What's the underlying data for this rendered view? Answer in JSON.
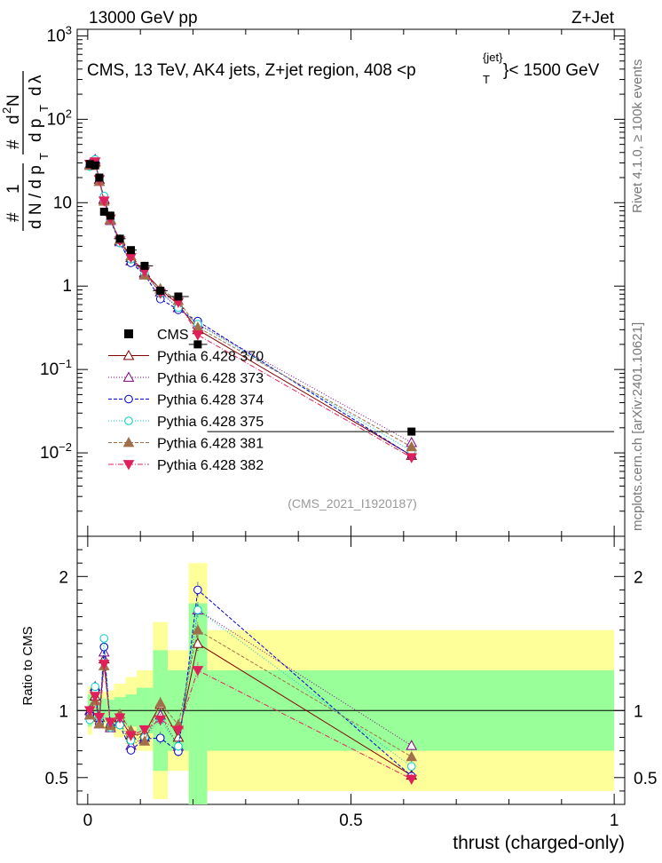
{
  "header": {
    "left": "13000 GeV pp",
    "right": "Z+Jet"
  },
  "side_labels": {
    "rivet": "Rivet 4.1.0, ≥ 100k events",
    "mcplots": "mcplots.cern.ch [arXiv:2401.10621]"
  },
  "chart_data": {
    "type": "scatter",
    "title": "CMS, 13 TeV, AK4 jets, Z+jet region, 408 <p_T^{jet}< 1500 GeV",
    "analysis_tag": "(CMS_2021_I1920187)",
    "xlabel": "thrust (charged-only)",
    "ylabel_main": "1/(dN/dp_T) d²N/(dp_T dλ)",
    "ylabel_ratio": "Ratio to CMS",
    "xlim": [
      -0.02,
      1.02
    ],
    "ylim_main": [
      0.001,
      1200
    ],
    "yscale_main": "log",
    "ylim_ratio": [
      0.3,
      2.3
    ],
    "x_ticks": [
      0,
      0.5,
      1
    ],
    "x_tick_labels": [
      "0",
      "0.5",
      "1"
    ],
    "y_ticks_main": [
      {
        "v": 0.01,
        "base": "10",
        "exp": "−2"
      },
      {
        "v": 0.1,
        "base": "10",
        "exp": "−1"
      },
      {
        "v": 1,
        "base": "1",
        "exp": ""
      },
      {
        "v": 10,
        "base": "10",
        "exp": ""
      },
      {
        "v": 100,
        "base": "10",
        "exp": "2"
      },
      {
        "v": 1000,
        "base": "10",
        "exp": "3"
      }
    ],
    "y_ticks_ratio": [
      0.5,
      1,
      2
    ],
    "y_tick_labels_ratio": [
      "0.5",
      "1",
      "2"
    ],
    "legend_position": "middle-left",
    "x": [
      0.004,
      0.014,
      0.022,
      0.031,
      0.043,
      0.061,
      0.082,
      0.108,
      0.138,
      0.172,
      0.209,
      0.615
    ],
    "bins": [
      [
        0.0,
        0.008
      ],
      [
        0.008,
        0.018
      ],
      [
        0.018,
        0.027
      ],
      [
        0.027,
        0.036
      ],
      [
        0.036,
        0.05
      ],
      [
        0.05,
        0.072
      ],
      [
        0.072,
        0.093
      ],
      [
        0.093,
        0.124
      ],
      [
        0.124,
        0.152
      ],
      [
        0.152,
        0.192
      ],
      [
        0.192,
        0.227
      ],
      [
        0.227,
        1.0
      ]
    ],
    "data": {
      "name": "CMS",
      "color": "#000000",
      "values": [
        29,
        28,
        20,
        7.8,
        7,
        3.7,
        2.7,
        1.75,
        0.88,
        0.75,
        0.2,
        0.018
      ]
    },
    "ratio_bands": [
      {
        "inner": 0.12,
        "outer": 0.18
      },
      {
        "inner": 0.06,
        "outer": 0.1
      },
      {
        "inner": 0.07,
        "outer": 0.12
      },
      {
        "inner": 0.09,
        "outer": 0.14
      },
      {
        "inner": 0.08,
        "outer": 0.15
      },
      {
        "inner": 0.1,
        "outer": 0.2
      },
      {
        "inner": 0.12,
        "outer": 0.25
      },
      {
        "inner": 0.17,
        "outer": 0.3
      },
      {
        "inner": 0.45,
        "outer": 0.66
      },
      {
        "inner": 0.3,
        "outer": 0.45
      },
      {
        "inner": 0.8,
        "outer": 1.1
      },
      {
        "inner": 0.3,
        "outer": 0.6
      }
    ],
    "series": [
      {
        "name": "Pythia 6.428 370",
        "color": "#800000",
        "marker": "triangle-open",
        "dash": "",
        "values": [
          28,
          31,
          19,
          10.8,
          6.3,
          3.5,
          2.2,
          1.45,
          0.92,
          0.6,
          0.3,
          0.0093
        ]
      },
      {
        "name": "Pythia 6.428 373",
        "color": "#800080",
        "marker": "triangle-open",
        "dash": "1,2",
        "values": [
          29,
          33,
          18,
          11.2,
          6.1,
          3.4,
          2.0,
          1.4,
          0.85,
          0.55,
          0.35,
          0.0133
        ]
      },
      {
        "name": "Pythia 6.428 374",
        "color": "#0000cc",
        "marker": "circle-open",
        "dash": "4,2",
        "values": [
          28,
          32,
          18,
          11.5,
          6.2,
          3.3,
          1.9,
          1.38,
          0.7,
          0.52,
          0.38,
          0.0092
        ]
      },
      {
        "name": "Pythia 6.428 375",
        "color": "#00cccc",
        "marker": "circle-open",
        "dash": "1,2",
        "values": [
          27,
          33,
          19,
          12.0,
          6.1,
          3.3,
          2.1,
          1.4,
          0.82,
          0.55,
          0.35,
          0.0105
        ]
      },
      {
        "name": "Pythia 6.428 381",
        "color": "#a0704a",
        "marker": "triangle-filled",
        "dash": "4,2",
        "values": [
          28,
          30,
          18,
          10.4,
          6.2,
          3.6,
          2.3,
          1.35,
          0.93,
          0.67,
          0.32,
          0.0118
        ]
      },
      {
        "name": "Pythia 6.428 382",
        "color": "#e0205a",
        "marker": "triangle-down-filled",
        "dash": "6,2,1,2",
        "values": [
          29,
          31,
          19,
          10.5,
          6.4,
          3.5,
          2.2,
          1.5,
          0.82,
          0.64,
          0.26,
          0.0088
        ]
      }
    ]
  }
}
